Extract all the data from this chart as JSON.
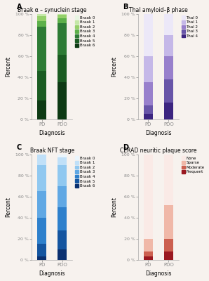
{
  "panel_A": {
    "title": "Braak α – synuclein stage",
    "xlabel": "Diagnosis",
    "ylabel": "Percent",
    "categories": [
      "PD",
      "PDO"
    ],
    "legend_labels": [
      "Braak 0",
      "Braak 1",
      "Braak 2",
      "Braak 3",
      "Braak 4",
      "Braak 5",
      "Braak 6"
    ],
    "colors": [
      "#e8f5e2",
      "#c5e8a8",
      "#95d06a",
      "#5db04a",
      "#2d7b35",
      "#1a5c22",
      "#0d3a14"
    ],
    "PD": [
      0,
      2,
      5,
      5,
      42,
      28,
      18
    ],
    "PDO": [
      0,
      1,
      3,
      5,
      30,
      26,
      35
    ]
  },
  "panel_B": {
    "title": "Thal amyloid–β phase",
    "xlabel": "Diagnosis",
    "ylabel": "Percent",
    "categories": [
      "PD",
      "PDO"
    ],
    "legend_labels": [
      "Thal 0",
      "Thal 1",
      "Thal 2",
      "Thal 3",
      "Thal 4"
    ],
    "colors": [
      "#ece8f8",
      "#c5b8e8",
      "#9880cc",
      "#6855a8",
      "#3c2580"
    ],
    "PD": [
      40,
      25,
      22,
      8,
      5
    ],
    "PDO": [
      20,
      20,
      22,
      22,
      16
    ]
  },
  "panel_C": {
    "title": "Braak NFT stage",
    "xlabel": "Diagnosis",
    "ylabel": "Percent",
    "categories": [
      "PD",
      "PDO"
    ],
    "legend_labels": [
      "Braak 0",
      "Braak 1",
      "Braak 2",
      "Braak 3",
      "Braak 4",
      "Braak 5",
      "Braak 6"
    ],
    "colors": [
      "#eaf5fc",
      "#c0e0f8",
      "#90c8f0",
      "#60a8e4",
      "#2e80cc",
      "#1455a0",
      "#0a3070"
    ],
    "PD": [
      0,
      10,
      25,
      25,
      25,
      12,
      3
    ],
    "PDO": [
      3,
      7,
      20,
      20,
      22,
      18,
      10
    ]
  },
  "panel_D": {
    "title": "CERAD neuritic plaque score",
    "xlabel": "Diagnosis",
    "ylabel": "Percent",
    "categories": [
      "PD",
      "PDO"
    ],
    "legend_labels": [
      "None",
      "Sparse",
      "Moderate",
      "Frequent"
    ],
    "colors": [
      "#faeae6",
      "#f0b8a8",
      "#cc6050",
      "#9a1820"
    ],
    "PD": [
      80,
      12,
      5,
      3
    ],
    "PDO": [
      48,
      32,
      12,
      8
    ]
  },
  "bg_color": "#f7f2ee",
  "label_A": "A",
  "label_B": "B",
  "label_C": "C",
  "label_D": "D"
}
